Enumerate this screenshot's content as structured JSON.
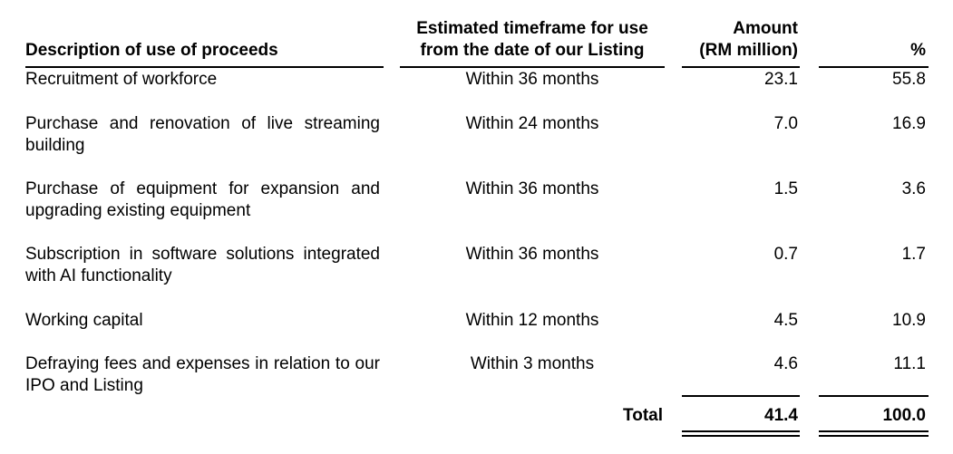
{
  "headers": {
    "description": "Description of use of proceeds",
    "timeframe_line1": "Estimated timeframe for use",
    "timeframe_line2": "from the date of our Listing",
    "amount_line1": "Amount",
    "amount_line2": "(RM million)",
    "percent": "%"
  },
  "rows": [
    {
      "description": "Recruitment of workforce",
      "timeframe": "Within 36 months",
      "amount": "23.1",
      "percent": "55.8"
    },
    {
      "description": "Purchase and renovation of live streaming building",
      "timeframe": "Within 24 months",
      "amount": "7.0",
      "percent": "16.9"
    },
    {
      "description": "Purchase of equipment for expansion and upgrading existing equipment",
      "timeframe": "Within 36 months",
      "amount": "1.5",
      "percent": "3.6"
    },
    {
      "description": "Subscription in software solutions integrated with AI functionality",
      "timeframe": "Within 36 months",
      "amount": "0.7",
      "percent": "1.7"
    },
    {
      "description": "Working capital",
      "timeframe": "Within 12 months",
      "amount": "4.5",
      "percent": "10.9"
    },
    {
      "description": "Defraying fees and expenses in relation to our IPO and Listing",
      "timeframe": "Within 3 months",
      "amount": "4.6",
      "percent": "11.1"
    }
  ],
  "total": {
    "label": "Total",
    "amount": "41.4",
    "percent": "100.0"
  }
}
